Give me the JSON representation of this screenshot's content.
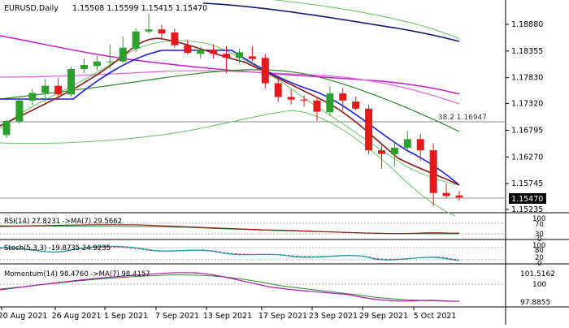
{
  "header": {
    "symbol_info": "EURUSD,Daily",
    "ohlc": "1.15508 1.15599 1.15415 1.15470"
  },
  "price_axis": {
    "labels": [
      "1.18880",
      "1.18355",
      "1.17830",
      "1.17320",
      "1.16795",
      "1.16270",
      "1.15745",
      "1.15235"
    ],
    "current_price": "1.15470",
    "fib_label": "38.2 1.16947"
  },
  "rsi": {
    "label": "RSI(14) 27.8231 ->MA(7) 29.5662",
    "axis": [
      "100",
      "70",
      "30",
      "0"
    ]
  },
  "stoch": {
    "label": "Stoch(5,3,3) -19.8735 24.9235",
    "axis": [
      "100",
      "80",
      "20",
      "0"
    ]
  },
  "momentum": {
    "label": "Momentum(14) 98.4760 ->MA(7) 98.4157",
    "axis": [
      "101.5162",
      "100",
      "97.8855"
    ]
  },
  "date_axis": [
    "20 Aug 2021",
    "26 Aug 2021",
    "1 Sep 2021",
    "7 Sep 2021",
    "13 Sep 2021",
    "17 Sep 2021",
    "23 Sep 2021",
    "29 Sep 2021",
    "5 Oct 2021"
  ],
  "colors": {
    "bull": "#2ca02c",
    "bear": "#e31a1c",
    "sma_fast": "#1a1ae6",
    "ema_red": "#8b1a1a",
    "sma_green": "#2e8b2e",
    "sma_magenta": "#c31ac3",
    "sma_pink": "#e066e0",
    "sma_navy": "#141e70",
    "bollinger": "#66c266",
    "rsi_line": "#8b1a1a",
    "rsi_ma": "#2ca02c",
    "stoch_main": "#1aa0b0",
    "stoch_signal": "#d04040",
    "momentum_line": "#b01ab0",
    "momentum_ma": "#2e8b2e"
  },
  "chart_data": {
    "type": "candlestick",
    "candles": [
      {
        "o": 1.167,
        "h": 1.17,
        "l": 1.1664,
        "c": 1.1698
      },
      {
        "o": 1.1697,
        "h": 1.1741,
        "l": 1.1692,
        "c": 1.1738
      },
      {
        "o": 1.1738,
        "h": 1.1761,
        "l": 1.1728,
        "c": 1.1753
      },
      {
        "o": 1.1753,
        "h": 1.1781,
        "l": 1.1735,
        "c": 1.1767
      },
      {
        "o": 1.1767,
        "h": 1.1782,
        "l": 1.174,
        "c": 1.175
      },
      {
        "o": 1.175,
        "h": 1.1805,
        "l": 1.1745,
        "c": 1.18
      },
      {
        "o": 1.18,
        "h": 1.1821,
        "l": 1.1792,
        "c": 1.1808
      },
      {
        "o": 1.1806,
        "h": 1.1826,
        "l": 1.1798,
        "c": 1.1815
      },
      {
        "o": 1.1815,
        "h": 1.1848,
        "l": 1.18,
        "c": 1.1815
      },
      {
        "o": 1.1815,
        "h": 1.1864,
        "l": 1.1812,
        "c": 1.1842
      },
      {
        "o": 1.184,
        "h": 1.188,
        "l": 1.1833,
        "c": 1.1874
      },
      {
        "o": 1.1874,
        "h": 1.1909,
        "l": 1.187,
        "c": 1.1878
      },
      {
        "o": 1.1878,
        "h": 1.1887,
        "l": 1.186,
        "c": 1.187
      },
      {
        "o": 1.1872,
        "h": 1.188,
        "l": 1.1842,
        "c": 1.1847
      },
      {
        "o": 1.1847,
        "h": 1.1858,
        "l": 1.1828,
        "c": 1.1832
      },
      {
        "o": 1.183,
        "h": 1.1844,
        "l": 1.182,
        "c": 1.1838
      },
      {
        "o": 1.1838,
        "h": 1.1848,
        "l": 1.182,
        "c": 1.183
      },
      {
        "o": 1.183,
        "h": 1.1845,
        "l": 1.1792,
        "c": 1.1822
      },
      {
        "o": 1.1822,
        "h": 1.184,
        "l": 1.1812,
        "c": 1.1833
      },
      {
        "o": 1.1825,
        "h": 1.1845,
        "l": 1.1815,
        "c": 1.182
      },
      {
        "o": 1.1822,
        "h": 1.183,
        "l": 1.1762,
        "c": 1.1772
      },
      {
        "o": 1.1772,
        "h": 1.178,
        "l": 1.1735,
        "c": 1.1745
      },
      {
        "o": 1.1745,
        "h": 1.176,
        "l": 1.173,
        "c": 1.174
      },
      {
        "o": 1.174,
        "h": 1.1748,
        "l": 1.1726,
        "c": 1.1738
      },
      {
        "o": 1.1738,
        "h": 1.1745,
        "l": 1.1698,
        "c": 1.1716
      },
      {
        "o": 1.1715,
        "h": 1.1766,
        "l": 1.1708,
        "c": 1.1752
      },
      {
        "o": 1.1752,
        "h": 1.1763,
        "l": 1.1718,
        "c": 1.1738
      },
      {
        "o": 1.1736,
        "h": 1.1746,
        "l": 1.1718,
        "c": 1.1722
      },
      {
        "o": 1.1722,
        "h": 1.173,
        "l": 1.1633,
        "c": 1.164
      },
      {
        "o": 1.164,
        "h": 1.165,
        "l": 1.1604,
        "c": 1.1633
      },
      {
        "o": 1.1632,
        "h": 1.1658,
        "l": 1.1608,
        "c": 1.1645
      },
      {
        "o": 1.1645,
        "h": 1.1678,
        "l": 1.1636,
        "c": 1.1662
      },
      {
        "o": 1.1662,
        "h": 1.1672,
        "l": 1.162,
        "c": 1.164
      },
      {
        "o": 1.164,
        "h": 1.1654,
        "l": 1.153,
        "c": 1.1556
      },
      {
        "o": 1.1556,
        "h": 1.1575,
        "l": 1.1545,
        "c": 1.155
      },
      {
        "o": 1.1551,
        "h": 1.156,
        "l": 1.1541,
        "c": 1.1547
      }
    ]
  }
}
